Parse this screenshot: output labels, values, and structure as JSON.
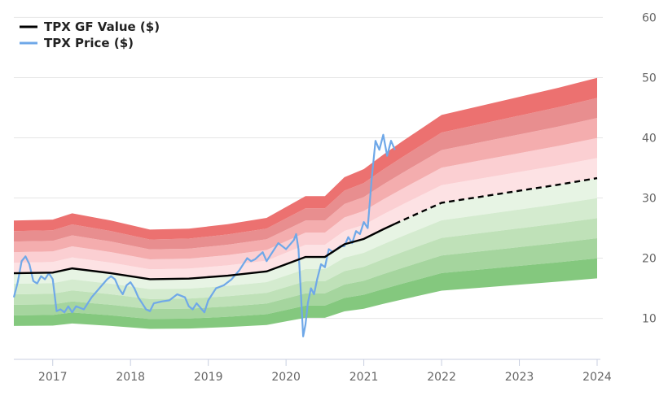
{
  "chart_data": {
    "type": "area",
    "title": "",
    "xlabel": "",
    "ylabel": "",
    "x_ticks": [
      "2017",
      "2018",
      "2019",
      "2020",
      "2021",
      "2022",
      "2023",
      "2024"
    ],
    "y_ticks": [
      10,
      20,
      30,
      40,
      50,
      60
    ],
    "xlim": [
      2016.5,
      2024.0
    ],
    "ylim": [
      4,
      61
    ],
    "grid": "horizontal",
    "legend": {
      "position": "top-left",
      "entries": [
        {
          "label": "TPX GF Value ($)",
          "color": "#000000"
        },
        {
          "label": "TPX Price ($)",
          "color": "#6fa8e8"
        }
      ]
    },
    "projection_start": 2021.4,
    "gf_value": {
      "name": "TPX GF Value ($)",
      "x": [
        2016.5,
        2017.0,
        2017.25,
        2017.75,
        2018.25,
        2018.75,
        2019.25,
        2019.75,
        2020.0,
        2020.25,
        2020.5,
        2020.75,
        2021.0,
        2021.25,
        2021.5,
        2022.0,
        2022.5,
        2023.0,
        2023.5,
        2024.0
      ],
      "y": [
        17.5,
        17.6,
        18.3,
        17.5,
        16.5,
        16.6,
        17.1,
        17.8,
        19.0,
        20.2,
        20.2,
        22.3,
        23.2,
        24.8,
        26.3,
        29.2,
        30.2,
        31.2,
        32.2,
        33.3
      ]
    },
    "bands": {
      "multipliers_above": [
        1.1,
        1.2,
        1.3,
        1.4,
        1.5
      ],
      "multipliers_below": [
        0.9,
        0.8,
        0.7,
        0.6,
        0.5
      ],
      "colors_above": [
        "#fde2e4",
        "#fbcfd2",
        "#f4adae",
        "#e88e8f",
        "#ec7170"
      ],
      "colors_below": [
        "#e7f4e4",
        "#d4ebcf",
        "#bfe1b8",
        "#a5d59e",
        "#84c87e"
      ]
    },
    "price": {
      "name": "TPX Price ($)",
      "x": [
        2016.5,
        2016.55,
        2016.6,
        2016.65,
        2016.7,
        2016.75,
        2016.8,
        2016.85,
        2016.9,
        2016.95,
        2017.0,
        2017.05,
        2017.1,
        2017.15,
        2017.2,
        2017.25,
        2017.3,
        2017.4,
        2017.5,
        2017.6,
        2017.7,
        2017.75,
        2017.8,
        2017.85,
        2017.9,
        2017.95,
        2018.0,
        2018.05,
        2018.1,
        2018.15,
        2018.2,
        2018.25,
        2018.3,
        2018.4,
        2018.5,
        2018.6,
        2018.7,
        2018.75,
        2018.8,
        2018.85,
        2018.95,
        2019.0,
        2019.05,
        2019.1,
        2019.2,
        2019.3,
        2019.4,
        2019.5,
        2019.55,
        2019.6,
        2019.7,
        2019.75,
        2019.8,
        2019.9,
        2020.0,
        2020.1,
        2020.13,
        2020.16,
        2020.2,
        2020.22,
        2020.25,
        2020.28,
        2020.32,
        2020.36,
        2020.4,
        2020.45,
        2020.5,
        2020.55,
        2020.6,
        2020.7,
        2020.75,
        2020.8,
        2020.85,
        2020.9,
        2020.95,
        2021.0,
        2021.05,
        2021.1,
        2021.15,
        2021.2,
        2021.25,
        2021.3,
        2021.35,
        2021.4
      ],
      "y": [
        13.5,
        16.0,
        19.5,
        20.3,
        19.0,
        16.2,
        15.8,
        17.0,
        16.5,
        17.5,
        16.5,
        11.2,
        11.5,
        11.0,
        12.0,
        11.0,
        12.0,
        11.5,
        13.5,
        15.0,
        16.5,
        17.0,
        16.5,
        15.0,
        14.0,
        15.5,
        16.0,
        15.0,
        13.5,
        12.5,
        11.5,
        11.2,
        12.5,
        12.8,
        13.0,
        14.0,
        13.5,
        12.0,
        11.5,
        12.5,
        11.0,
        13.0,
        14.0,
        15.0,
        15.5,
        16.5,
        18.0,
        20.0,
        19.5,
        19.8,
        21.0,
        19.5,
        20.5,
        22.5,
        21.5,
        23.0,
        24.0,
        21.5,
        12.0,
        7.0,
        9.0,
        12.5,
        15.0,
        14.0,
        16.5,
        19.0,
        18.5,
        21.5,
        21.0,
        22.0,
        22.0,
        23.5,
        22.5,
        24.5,
        24.0,
        26.0,
        25.0,
        33.0,
        39.5,
        38.0,
        40.5,
        37.0,
        39.5,
        38.0
      ]
    }
  }
}
